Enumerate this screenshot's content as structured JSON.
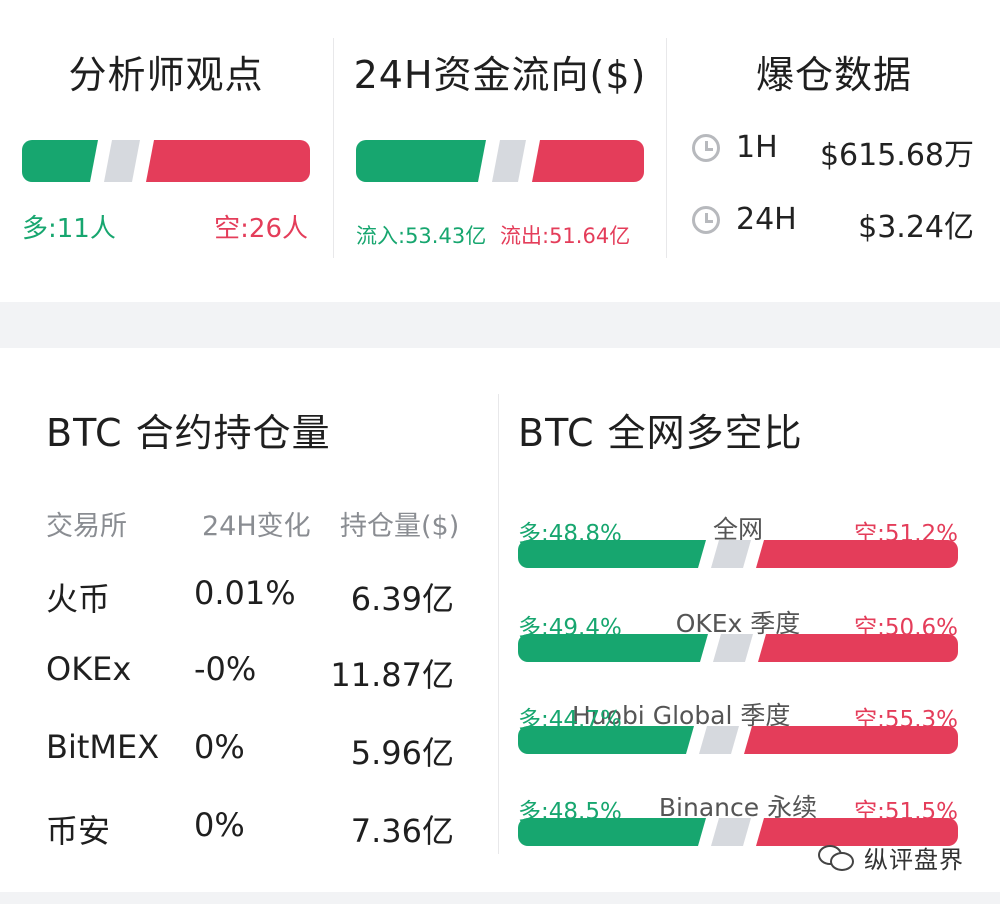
{
  "analyst": {
    "title": "分析师观点",
    "long_label": "多:11人",
    "short_label": "空:26人",
    "long_count": 11,
    "short_count": 26
  },
  "fund_flow": {
    "title": "24H资金流向($)",
    "inflow_label": "流入:53.43亿",
    "outflow_label": "流出:51.64亿"
  },
  "liquidation": {
    "title": "爆仓数据",
    "rows": [
      {
        "period": "1H",
        "amount": "$615.68万"
      },
      {
        "period": "24H",
        "amount": "$3.24亿"
      }
    ]
  },
  "open_interest": {
    "title": "BTC 合约持仓量",
    "headers": [
      "交易所",
      "24H变化",
      "持仓量($)"
    ],
    "rows": [
      {
        "exchange": "火币",
        "change": "0.01%",
        "oi": "6.39亿",
        "dir": "up"
      },
      {
        "exchange": "OKEx",
        "change": "-0%",
        "oi": "11.87亿",
        "dir": "down"
      },
      {
        "exchange": "BitMEX",
        "change": "0%",
        "oi": "5.96亿",
        "dir": "up"
      },
      {
        "exchange": "币安",
        "change": "0%",
        "oi": "7.36亿",
        "dir": "down"
      }
    ]
  },
  "long_short": {
    "title": "BTC 全网多空比",
    "rows": [
      {
        "name": "全网",
        "long": "多:48.8%",
        "short": "空:51.2%",
        "long_pct": 48.8
      },
      {
        "name": "OKEx 季度",
        "long": "多:49.4%",
        "short": "空:50.6%",
        "long_pct": 49.4
      },
      {
        "name": "Huobi Global 季度",
        "long": "多:44.7%",
        "short": "空:55.3%",
        "long_pct": 44.7
      },
      {
        "name": "Binance 永续",
        "long": "多:48.5%",
        "short": "空:51.5%",
        "long_pct": 48.5
      }
    ]
  },
  "watermark": {
    "text": "纵评盘界",
    "icon": "wechat-icon"
  },
  "colors": {
    "long": "#17a66f",
    "short": "#e43d5a",
    "neutral": "#d6d9de"
  }
}
